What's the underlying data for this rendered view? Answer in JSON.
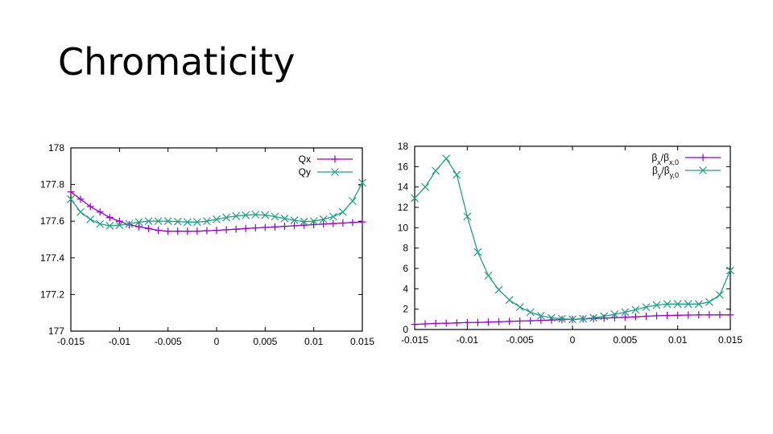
{
  "slide": {
    "title": "Chromaticity"
  },
  "colors": {
    "purple": "#9400D3",
    "teal": "#1FA082",
    "axis": "#000000"
  },
  "chart_data": [
    {
      "type": "line",
      "x_ticks": [
        "-0.015",
        "-0.01",
        "-0.005",
        "0",
        "0.005",
        "0.01",
        "0.015"
      ],
      "y_ticks": [
        "177",
        "177.2",
        "177.4",
        "177.6",
        "177.8",
        "178"
      ],
      "xlim": [
        -0.015,
        0.015
      ],
      "ylim": [
        177,
        178
      ],
      "grid": false,
      "legend_position": "top-right",
      "series": [
        {
          "name": "Qx",
          "marker": "plus",
          "color": "#9400D3",
          "x": [
            -0.015,
            -0.014,
            -0.013,
            -0.012,
            -0.011,
            -0.01,
            -0.009,
            -0.008,
            -0.007,
            -0.006,
            -0.005,
            -0.004,
            -0.003,
            -0.002,
            -0.001,
            0,
            0.001,
            0.002,
            0.003,
            0.004,
            0.005,
            0.006,
            0.007,
            0.008,
            0.009,
            0.01,
            0.011,
            0.012,
            0.013,
            0.014,
            0.015
          ],
          "y": [
            177.76,
            177.72,
            177.68,
            177.65,
            177.62,
            177.6,
            177.58,
            177.57,
            177.56,
            177.55,
            177.545,
            177.545,
            177.545,
            177.545,
            177.548,
            177.55,
            177.553,
            177.556,
            177.56,
            177.563,
            177.566,
            177.569,
            177.572,
            177.575,
            177.578,
            177.581,
            177.584,
            177.587,
            177.59,
            177.593,
            177.596
          ]
        },
        {
          "name": "Qy",
          "marker": "x",
          "color": "#1FA082",
          "x": [
            -0.015,
            -0.014,
            -0.013,
            -0.012,
            -0.011,
            -0.01,
            -0.009,
            -0.008,
            -0.007,
            -0.006,
            -0.005,
            -0.004,
            -0.003,
            -0.002,
            -0.001,
            0,
            0.001,
            0.002,
            0.003,
            0.004,
            0.005,
            0.006,
            0.007,
            0.008,
            0.009,
            0.01,
            0.011,
            0.012,
            0.013,
            0.014,
            0.015
          ],
          "y": [
            177.72,
            177.65,
            177.61,
            177.585,
            177.575,
            177.578,
            177.585,
            177.595,
            177.6,
            177.6,
            177.6,
            177.598,
            177.595,
            177.595,
            177.6,
            177.61,
            177.62,
            177.628,
            177.633,
            177.636,
            177.633,
            177.625,
            177.615,
            177.605,
            177.598,
            177.6,
            177.61,
            177.625,
            177.65,
            177.71,
            177.81
          ]
        }
      ]
    },
    {
      "type": "line",
      "x_ticks": [
        "-0.015",
        "-0.01",
        "-0.005",
        "0",
        "0.005",
        "0.01",
        "0.015"
      ],
      "y_ticks": [
        "0",
        "2",
        "4",
        "6",
        "8",
        "10",
        "12",
        "14",
        "16",
        "18"
      ],
      "xlim": [
        -0.015,
        0.015
      ],
      "ylim": [
        0,
        18
      ],
      "grid": false,
      "legend_position": "top-right",
      "series": [
        {
          "name": "βx/βx,0",
          "marker": "plus",
          "color": "#9400D3",
          "x": [
            -0.015,
            -0.014,
            -0.013,
            -0.012,
            -0.011,
            -0.01,
            -0.009,
            -0.008,
            -0.007,
            -0.006,
            -0.005,
            -0.004,
            -0.003,
            -0.002,
            -0.001,
            0,
            0.001,
            0.002,
            0.003,
            0.004,
            0.005,
            0.006,
            0.007,
            0.008,
            0.009,
            0.01,
            0.011,
            0.012,
            0.013,
            0.014,
            0.015
          ],
          "y": [
            0.5,
            0.55,
            0.6,
            0.62,
            0.65,
            0.68,
            0.7,
            0.73,
            0.76,
            0.8,
            0.83,
            0.86,
            0.9,
            0.93,
            0.97,
            1.0,
            1.04,
            1.08,
            1.12,
            1.16,
            1.2,
            1.25,
            1.3,
            1.35,
            1.38,
            1.4,
            1.42,
            1.43,
            1.44,
            1.44,
            1.44
          ]
        },
        {
          "name": "βy/βy,0",
          "marker": "x",
          "color": "#1FA082",
          "x": [
            -0.015,
            -0.014,
            -0.013,
            -0.012,
            -0.011,
            -0.01,
            -0.009,
            -0.008,
            -0.007,
            -0.006,
            -0.005,
            -0.004,
            -0.003,
            -0.002,
            -0.001,
            0,
            0.001,
            0.002,
            0.003,
            0.004,
            0.005,
            0.006,
            0.007,
            0.008,
            0.009,
            0.01,
            0.011,
            0.012,
            0.013,
            0.014,
            0.015
          ],
          "y": [
            12.9,
            14.0,
            15.6,
            16.8,
            15.2,
            11.1,
            7.6,
            5.3,
            3.9,
            2.9,
            2.2,
            1.7,
            1.35,
            1.15,
            1.05,
            1.0,
            1.05,
            1.15,
            1.3,
            1.5,
            1.7,
            1.95,
            2.2,
            2.4,
            2.5,
            2.5,
            2.5,
            2.5,
            2.7,
            3.4,
            5.8
          ]
        }
      ]
    }
  ]
}
